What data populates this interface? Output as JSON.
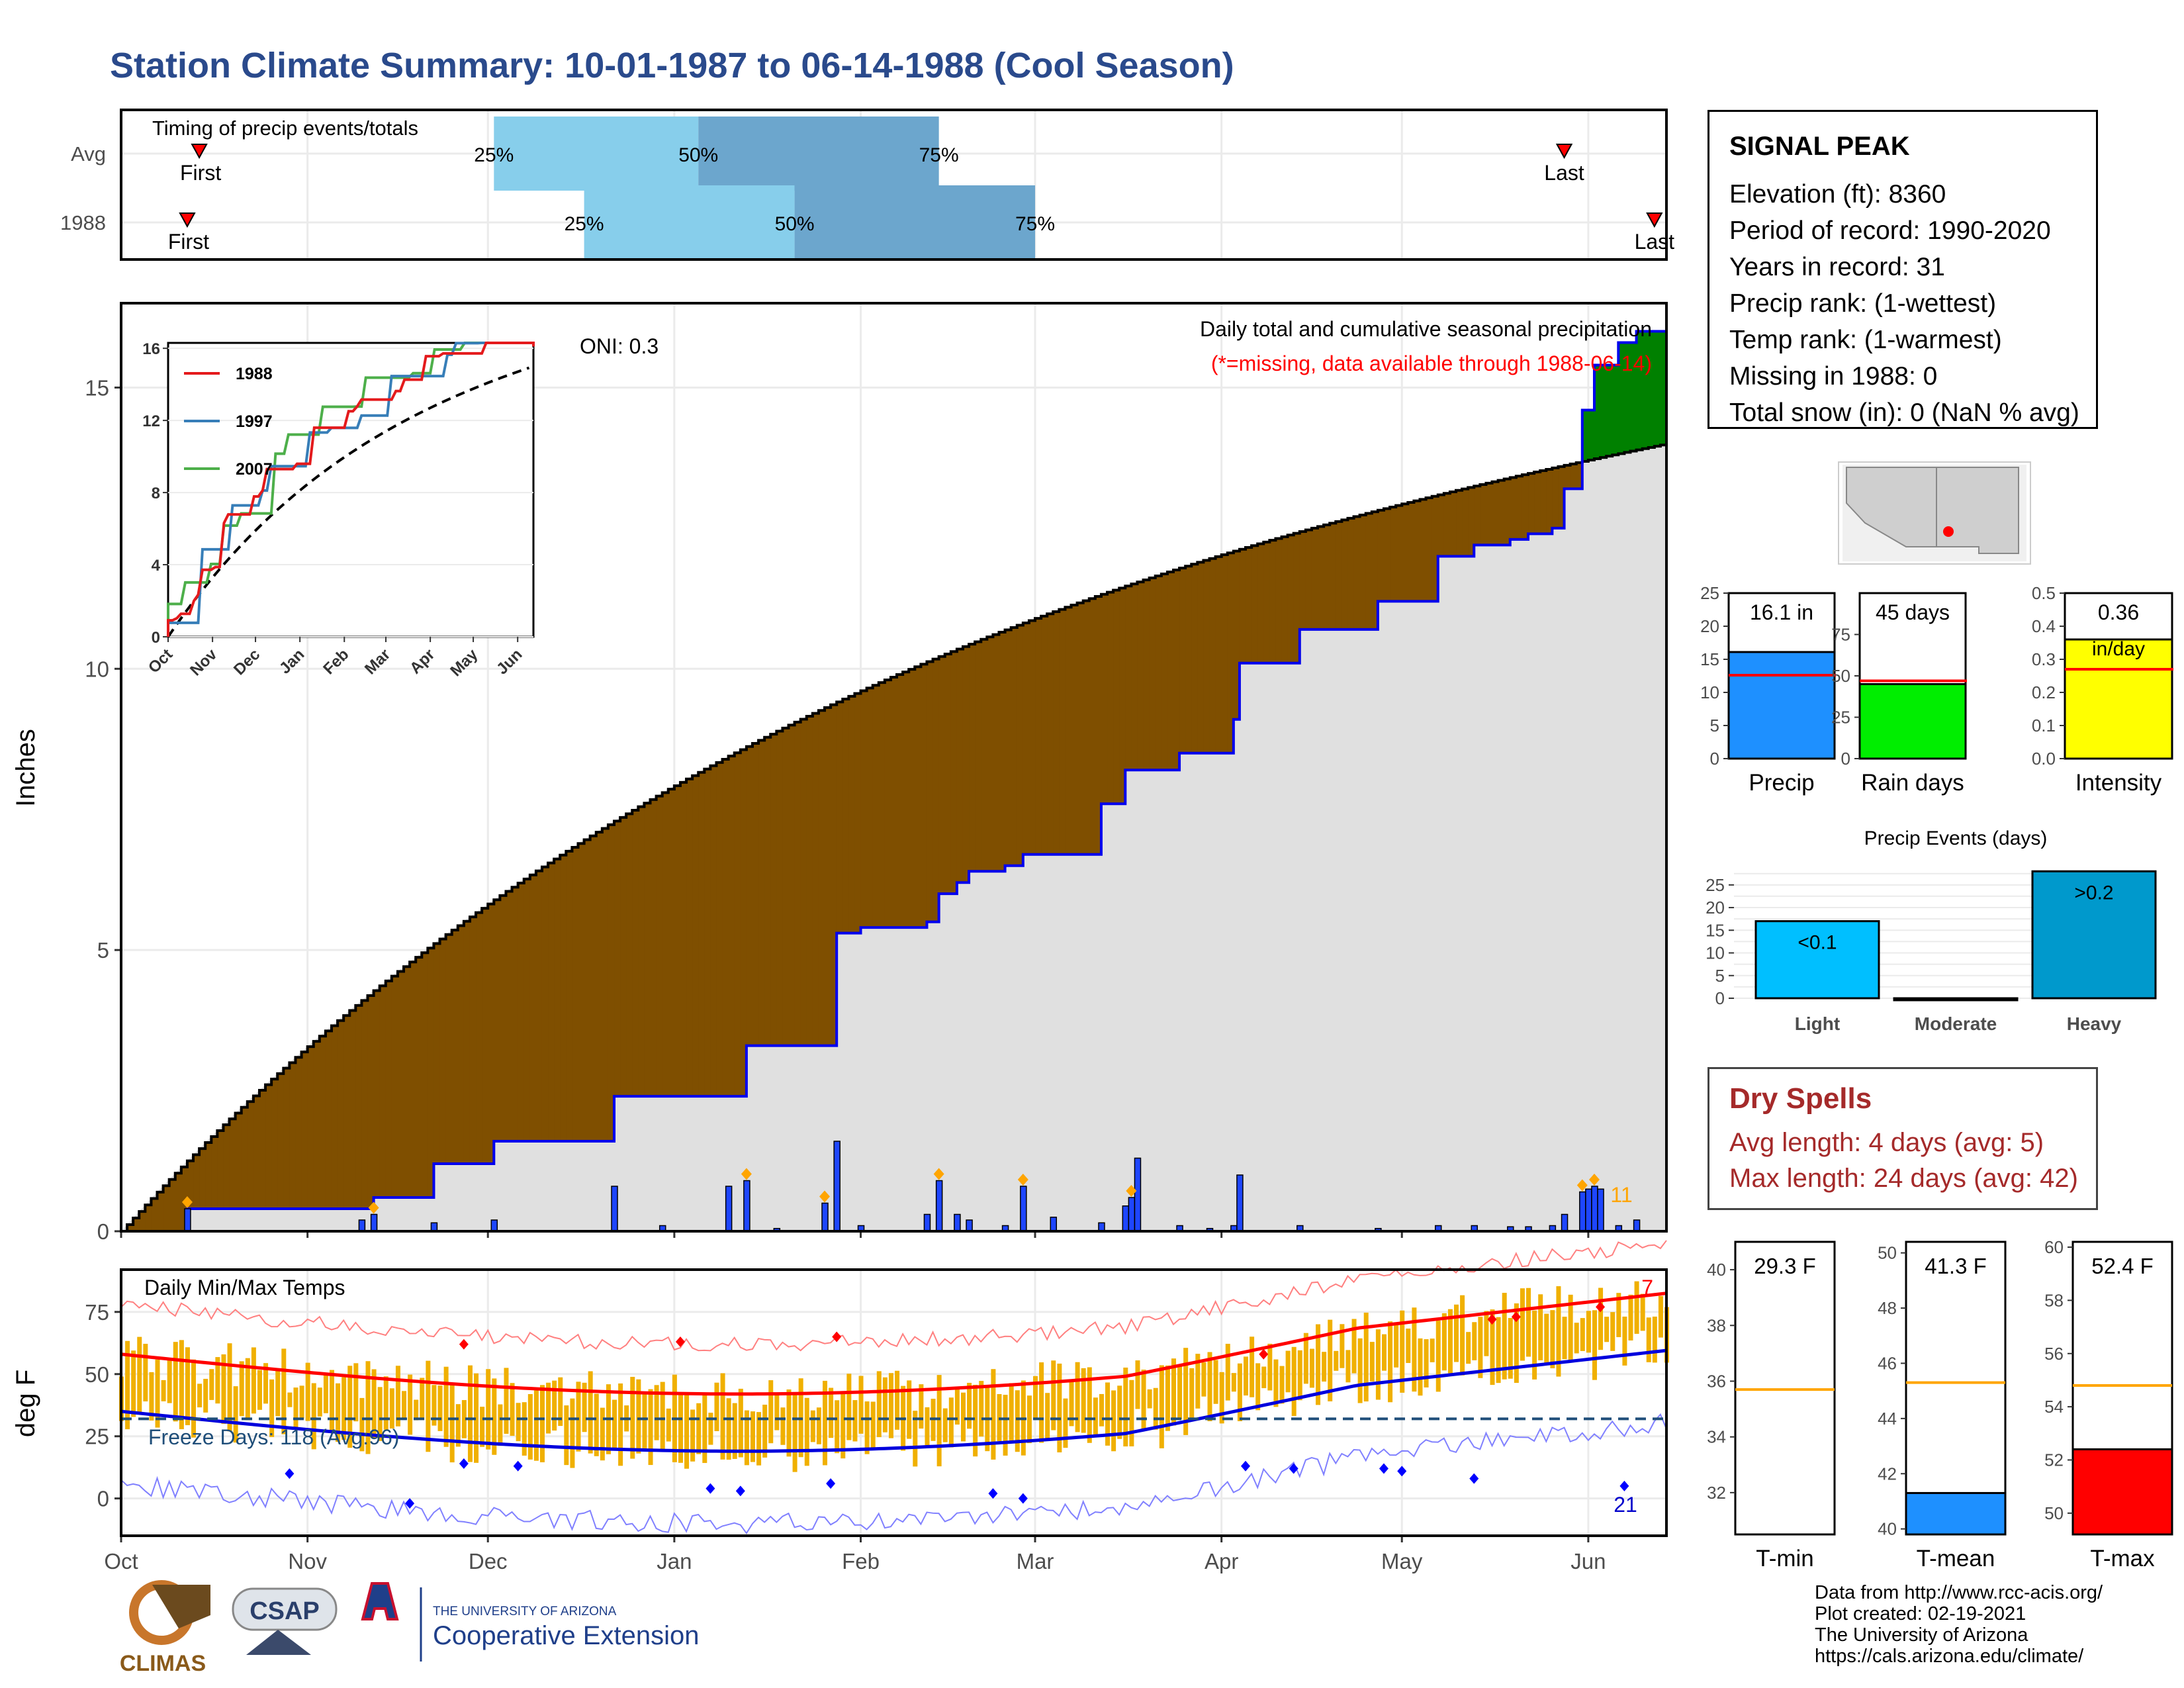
{
  "title": "Station Climate Summary: 10-01-1987 to 06-14-1988 (Cool Season)",
  "station": {
    "name": "SIGNAL PEAK",
    "lines": [
      "Elevation (ft): 8360",
      "Period of record: 1990-2020",
      "Years in record: 31",
      "Precip rank:  (1-wettest)",
      "Temp rank:  (1-warmest)",
      "Missing in 1988: 0",
      "Total snow (in): 0 (NaN % avg)"
    ]
  },
  "timing": {
    "label": "Timing of precip events/totals",
    "rows": [
      "Avg",
      "1988"
    ],
    "first_label": "First",
    "last_label": "Last",
    "pct_labels": [
      "25%",
      "50%",
      "75%"
    ],
    "avg": {
      "first": "1987-10-14",
      "p25": "1987-12-02",
      "p50": "1988-01-05",
      "p75": "1988-02-14",
      "last": "1988-05-28"
    },
    "y1988": {
      "first": "1987-10-12",
      "p25": "1987-12-17",
      "p50": "1988-01-21",
      "p75": "1988-03-01",
      "last": "1988-06-12"
    }
  },
  "precip": {
    "ylabel": "Inches",
    "title": "Daily total and cumulative seasonal precipitation",
    "missing_note": "(*=missing, data available through 1988-06-14)",
    "oni": "ONI: 0.3",
    "count_label": "11",
    "ylim": [
      0,
      16.5
    ],
    "yticks": [
      "0",
      "5",
      "10",
      "15"
    ],
    "xticks": [
      "Oct",
      "Nov",
      "Dec",
      "Jan",
      "Feb",
      "Mar",
      "Apr",
      "May",
      "Jun"
    ],
    "colors": {
      "above": "#008000",
      "below": "#7f4f00",
      "avg_fill": "#e0e0e0",
      "line": "#0000ee",
      "bar": "#1e46ff",
      "marker": "#ffa500"
    }
  },
  "inset": {
    "legend": [
      "1988",
      "1997",
      "2007"
    ],
    "colors": [
      "#e41a1c",
      "#377eb8",
      "#4daf4a"
    ],
    "yticks": [
      "0",
      "4",
      "8",
      "12",
      "16"
    ],
    "xticks": [
      "Oct",
      "Nov",
      "Dec",
      "Jan",
      "Feb",
      "Mar",
      "Apr",
      "May",
      "Jun"
    ]
  },
  "temps": {
    "title": "Daily Min/Max Temps",
    "ylabel": "deg F",
    "freeze_label": "Freeze Days: 118 (Avg:96)",
    "max_count": "7",
    "min_count": "21",
    "yticks": [
      "0",
      "25",
      "50",
      "75"
    ],
    "xticks": [
      "Oct",
      "Nov",
      "Dec",
      "Jan",
      "Feb",
      "Mar",
      "Apr",
      "May",
      "Jun"
    ],
    "ylim": [
      -15,
      92
    ],
    "freeze_line": 32
  },
  "summary_bars": {
    "precip": {
      "label": "Precip",
      "value_label": "16.1 in",
      "value": 16.1,
      "avg": 12.6,
      "yticks": [
        "0",
        "5",
        "10",
        "15",
        "20",
        "25"
      ],
      "max": 25,
      "color": "#1e90ff"
    },
    "raindays": {
      "label": "Rain days",
      "value_label": "45 days",
      "value": 45,
      "avg": 47,
      "yticks": [
        "0",
        "25",
        "50",
        "75"
      ],
      "max": 100,
      "color": "#00ee00"
    },
    "intensity": {
      "label": "Intensity",
      "value_label": "0.36",
      "unit": "in/day",
      "value": 0.36,
      "avg": 0.27,
      "yticks": [
        "0.0",
        "0.1",
        "0.2",
        "0.3",
        "0.4",
        "0.5"
      ],
      "max": 0.5,
      "color": "#ffff00"
    }
  },
  "events": {
    "title": "Precip Events (days)",
    "categories": [
      "Light",
      "Moderate",
      "Heavy"
    ],
    "values": [
      17,
      0,
      28
    ],
    "labels": [
      "<0.1",
      "",
      ">0.2"
    ],
    "colors": [
      "#00bfff",
      "#00bfff",
      "#0099cc"
    ],
    "yticks": [
      "0",
      "5",
      "10",
      "15",
      "20",
      "25"
    ]
  },
  "dry_spells": {
    "title": "Dry Spells",
    "avg_line": "Avg length: 4 days (avg: 5)",
    "max_line": "Max length: 24 days (avg: 42)"
  },
  "temp_bars": {
    "tmin": {
      "label": "T-min",
      "value_label": "29.3 F",
      "value": 29.3,
      "avg": 35.7,
      "range": [
        30.5,
        41
      ],
      "yticks": [
        "32",
        "34",
        "36",
        "38",
        "40"
      ],
      "color": "#ffffff"
    },
    "tmean": {
      "label": "T-mean",
      "value_label": "41.3 F",
      "value": 41.3,
      "avg": 45.3,
      "range": [
        39.8,
        50.4
      ],
      "yticks": [
        "40",
        "42",
        "44",
        "46",
        "48",
        "50"
      ],
      "color": "#1e90ff"
    },
    "tmax": {
      "label": "T-max",
      "value_label": "52.4 F",
      "value": 52.4,
      "avg": 54.8,
      "range": [
        49.2,
        60.2
      ],
      "yticks": [
        "50",
        "52",
        "54",
        "56",
        "58",
        "60"
      ],
      "color": "#ff0000"
    }
  },
  "footer": [
    "Data from http://www.rcc-acis.org/",
    "Plot created: 02-19-2021",
    "The University of Arizona",
    "https://cals.arizona.edu/climate/"
  ],
  "logos": {
    "climas": "CLIMAS",
    "csap": "CSAP",
    "ua_small": "THE UNIVERSITY OF ARIZONA",
    "ua_big": "Cooperative Extension"
  }
}
